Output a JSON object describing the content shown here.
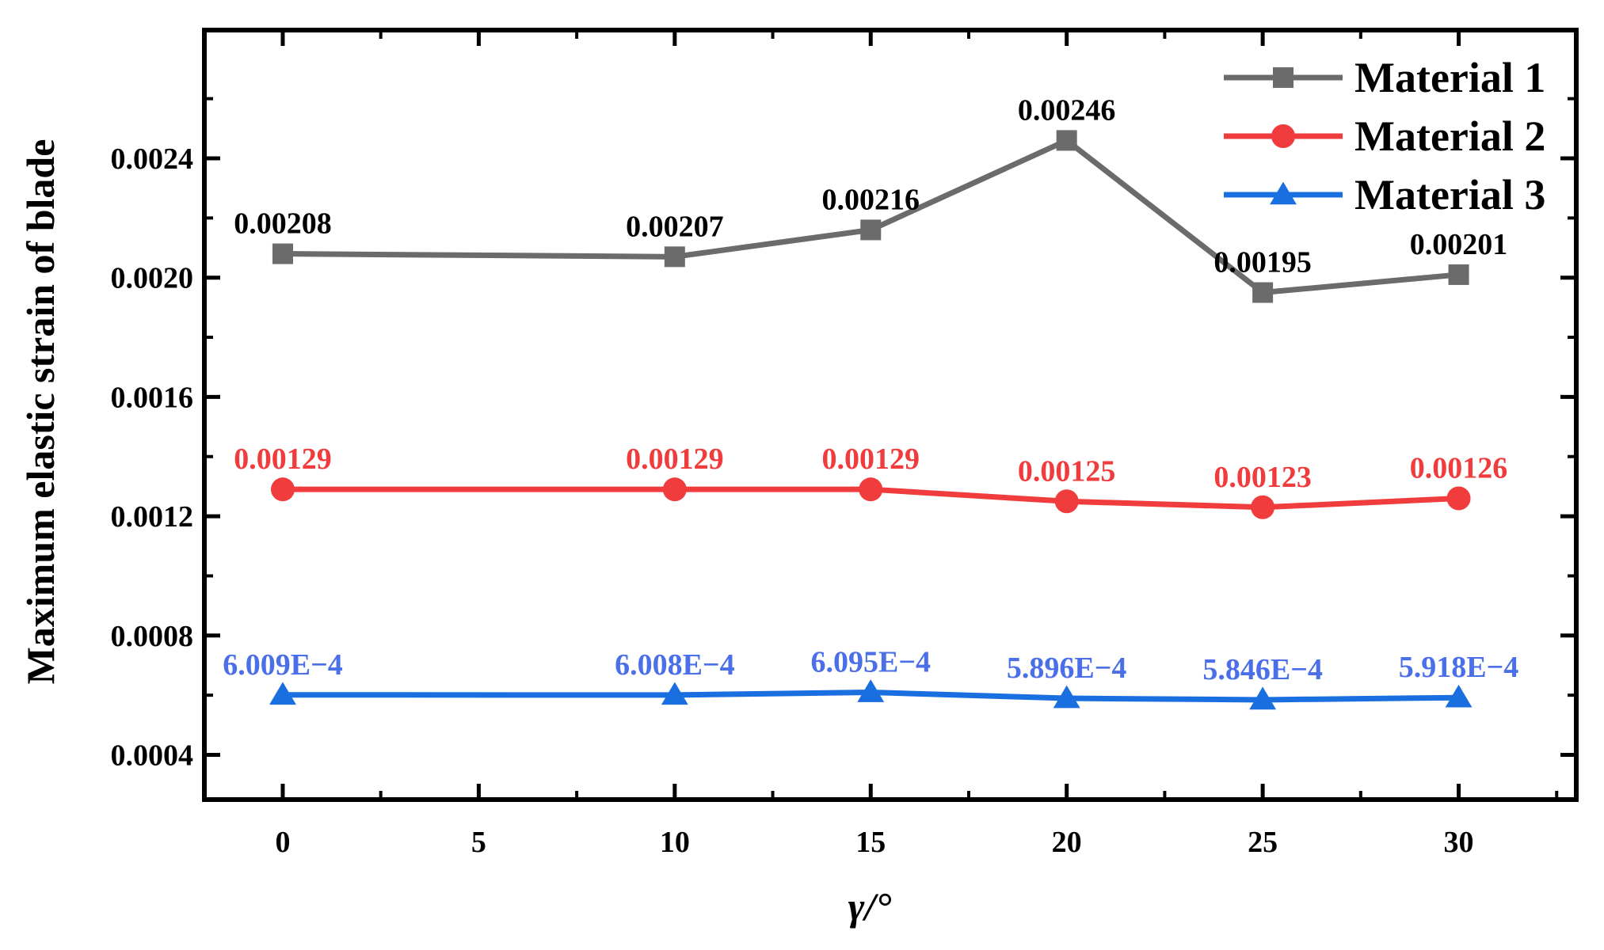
{
  "chart_data": {
    "type": "line",
    "title": "",
    "xlabel": "γ/°",
    "ylabel": "Maximum elastic strain of blade",
    "x": [
      0,
      10,
      15,
      20,
      25,
      30
    ],
    "xlim": [
      -2,
      33
    ],
    "ylim": [
      0.00025,
      0.00283
    ],
    "xticks": [
      "0",
      "5",
      "10",
      "15",
      "20",
      "25",
      "30"
    ],
    "yticks": [
      "0.0004",
      "0.0008",
      "0.0012",
      "0.0016",
      "0.0020",
      "0.0024"
    ],
    "grid": false,
    "legend_position": "top-right",
    "series": [
      {
        "name": "Material 1",
        "color": "#6b6b6b",
        "label_color": "#000000",
        "marker": "square",
        "values": [
          0.00208,
          0.00207,
          0.00216,
          0.00246,
          0.00195,
          0.00201
        ],
        "labels": [
          "0.00208",
          "0.00207",
          "0.00216",
          "0.00246",
          "0.00195",
          "0.00201"
        ]
      },
      {
        "name": "Material 2",
        "color": "#f03c3c",
        "label_color": "#f03c3c",
        "marker": "circle",
        "values": [
          0.00129,
          0.00129,
          0.00129,
          0.00125,
          0.00123,
          0.00126
        ],
        "labels": [
          "0.00129",
          "0.00129",
          "0.00129",
          "0.00125",
          "0.00123",
          "0.00126"
        ]
      },
      {
        "name": "Material 3",
        "color": "#1a6fe0",
        "label_color": "#4a6fe8",
        "marker": "triangle",
        "values": [
          0.0006009,
          0.0006008,
          0.0006095,
          0.0005896,
          0.0005846,
          0.0005918
        ],
        "labels": [
          "6.009E−4",
          "6.008E−4",
          "6.095E−4",
          "5.896E−4",
          "5.846E−4",
          "5.918E−4"
        ]
      }
    ]
  }
}
